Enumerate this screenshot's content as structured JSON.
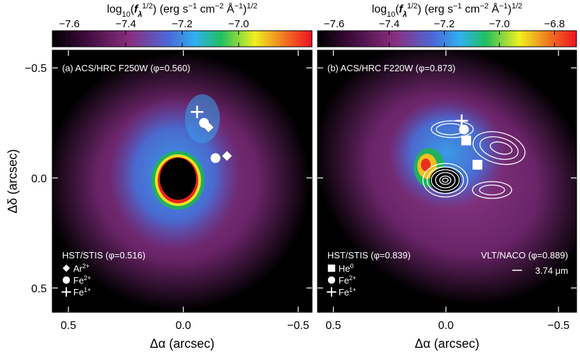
{
  "chart_data": [
    {
      "type": "image",
      "colorbar_label": [
        "log",
        "10",
        "(",
        "f",
        "λ",
        "1/2",
        ") (erg s",
        "−1",
        " cm",
        "−2",
        " Å",
        "−1",
        ")",
        "1/2"
      ],
      "colorbar_lim": [
        -7.66,
        -6.74
      ],
      "colorbar_ticks": [
        {
          "value": -7.6,
          "label": "−7.6"
        },
        {
          "value": -7.4,
          "label": "−7.4"
        },
        {
          "value": -7.2,
          "label": "−7.2"
        },
        {
          "value": -7.0,
          "label": "−7.0"
        }
      ],
      "annotations": [
        "(a) ACS/HRC F250W (φ=0.560)",
        "HST/STIS (φ=0.516)"
      ],
      "xlabel": "Δα (arcsec)",
      "ylabel": "Δδ (arcsec)",
      "xlim": [
        0.57,
        -0.56
      ],
      "ylim": [
        0.61,
        -0.58
      ],
      "xticks": [
        {
          "value": 0.5,
          "label": "0.5"
        },
        {
          "value": 0,
          "label": "0.0"
        },
        {
          "value": -0.5,
          "label": "−0.5"
        }
      ],
      "yticks": [
        {
          "value": -0.5,
          "label": "−0.5"
        },
        {
          "value": 0,
          "label": "0.0"
        },
        {
          "value": 0.5,
          "label": "0.5"
        }
      ],
      "series": [
        {
          "name": "Ar",
          "charge": "2+",
          "marker": "diamond",
          "color": "#ffffff",
          "x": [
            -0.11,
            -0.19
          ],
          "y": [
            -0.23,
            -0.1
          ]
        },
        {
          "name": "Fe",
          "charge": "2+",
          "marker": "circle",
          "color": "#ffffff",
          "x": [
            -0.09,
            -0.14
          ],
          "y": [
            -0.25,
            -0.09
          ]
        },
        {
          "name": "Fe",
          "charge": "1+",
          "marker": "plus",
          "color": "#ffffff",
          "x": [
            -0.06
          ],
          "y": [
            -0.3
          ]
        }
      ]
    },
    {
      "type": "image",
      "colorbar_label": [
        "log",
        "10",
        "(",
        "f",
        "λ",
        "1/2",
        ") (erg s",
        "−1",
        " cm",
        "−2",
        " Å",
        "−1",
        ")",
        "1/2"
      ],
      "colorbar_lim": [
        -7.66,
        -6.72
      ],
      "colorbar_ticks": [
        {
          "value": -7.6,
          "label": "−7.6"
        },
        {
          "value": -7.4,
          "label": "−7.4"
        },
        {
          "value": -7.2,
          "label": "−7.2"
        },
        {
          "value": -7.0,
          "label": "−7.0"
        },
        {
          "value": -6.8,
          "label": "−6.8"
        }
      ],
      "annotations": [
        "(b) ACS/HRC F220W (φ=0.873)",
        "HST/STIS (φ=0.839)",
        "VLT/NACO (φ=0.889)",
        "3.74 μm"
      ],
      "xlabel": "Δα (arcsec)",
      "xlim": [
        0.57,
        -0.58
      ],
      "ylim": [
        0.61,
        -0.58
      ],
      "xticks": [
        {
          "value": 0.5,
          "label": "0.5"
        },
        {
          "value": 0,
          "label": "0.0"
        },
        {
          "value": -0.5,
          "label": "−0.5"
        }
      ],
      "yticks": [
        -0.5,
        0,
        0.5
      ],
      "series": [
        {
          "name": "He",
          "charge": "0",
          "marker": "square",
          "color": "#ffffff",
          "x": [
            -0.09,
            -0.14
          ],
          "y": [
            -0.17,
            -0.06
          ]
        },
        {
          "name": "Fe",
          "charge": "2+",
          "marker": "circle",
          "color": "#ffffff",
          "x": [
            -0.08
          ],
          "y": [
            -0.22
          ]
        },
        {
          "name": "Fe",
          "charge": "1+",
          "marker": "plus",
          "color": "#ffffff",
          "x": [
            -0.07
          ],
          "y": [
            -0.26
          ]
        }
      ]
    }
  ]
}
